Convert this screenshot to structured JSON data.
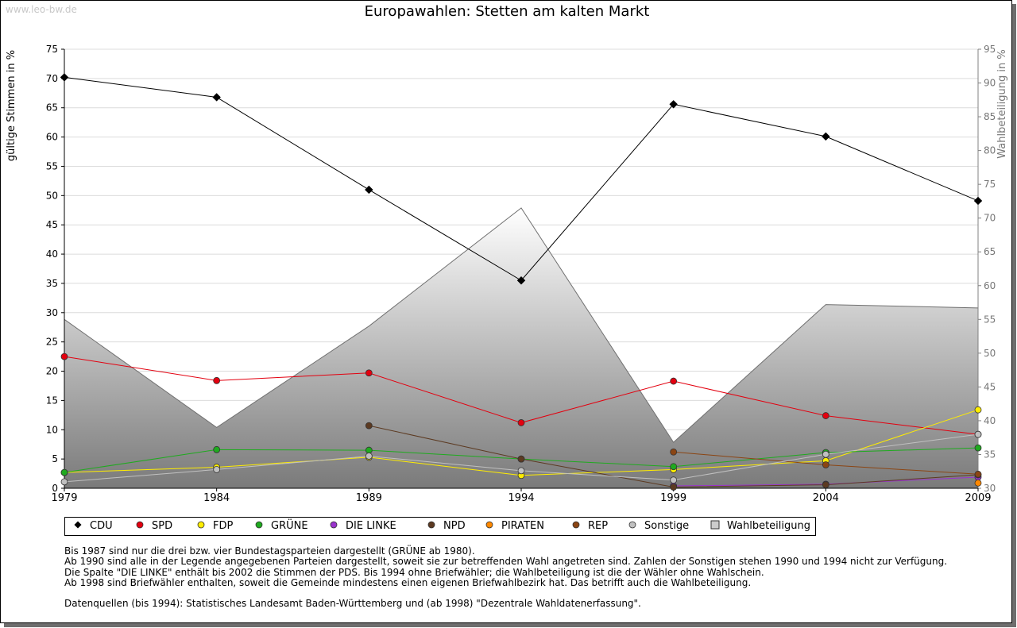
{
  "watermark": "www.leo-bw.de",
  "chart_data": {
    "type": "line",
    "title": "Europawahlen: Stetten am kalten Markt",
    "ylabel": "gültige Stimmen in %",
    "y2label": "Wahlbeteiligung in %",
    "x": [
      1979,
      1984,
      1989,
      1994,
      1999,
      2004,
      2009
    ],
    "ylim": [
      0,
      75
    ],
    "yticks": [
      0,
      5,
      10,
      15,
      20,
      25,
      30,
      35,
      40,
      45,
      50,
      55,
      60,
      65,
      70,
      75
    ],
    "y2lim": [
      30,
      95
    ],
    "y2ticks": [
      30,
      35,
      40,
      45,
      50,
      55,
      60,
      65,
      70,
      75,
      80,
      85,
      90,
      95
    ],
    "grid": true,
    "legend_position": "bottom",
    "series": [
      {
        "name": "CDU",
        "color": "#000000",
        "values": [
          70.2,
          66.8,
          51.0,
          35.5,
          65.6,
          60.1,
          49.1
        ]
      },
      {
        "name": "SPD",
        "color": "#e3000f",
        "values": [
          22.5,
          18.4,
          19.7,
          11.2,
          18.3,
          12.4,
          9.2
        ]
      },
      {
        "name": "FDP",
        "color": "#ffed00",
        "values": [
          2.7,
          3.6,
          5.3,
          2.2,
          3.2,
          4.7,
          13.4
        ]
      },
      {
        "name": "GRÜNE",
        "color": "#1faa1f",
        "values": [
          2.7,
          6.6,
          6.5,
          5.0,
          3.7,
          6.1,
          6.9
        ]
      },
      {
        "name": "DIE LINKE",
        "color": "#9933cc",
        "values": [
          null,
          null,
          null,
          null,
          0.4,
          0.7,
          1.9
        ]
      },
      {
        "name": "NPD",
        "color": "#5c3a21",
        "values": [
          null,
          null,
          10.7,
          5.0,
          0.2,
          0.6,
          2.3
        ]
      },
      {
        "name": "PIRATEN",
        "color": "#ff8800",
        "values": [
          null,
          null,
          null,
          null,
          null,
          null,
          0.9
        ]
      },
      {
        "name": "REP",
        "color": "#8b4513",
        "values": [
          null,
          null,
          null,
          null,
          6.2,
          4.0,
          2.4
        ]
      },
      {
        "name": "Sonstige",
        "color": "#c0c0c0",
        "values": [
          1.1,
          3.2,
          5.5,
          3.0,
          1.4,
          5.8,
          9.2
        ]
      }
    ],
    "turnout": {
      "name": "Wahlbeteiligung",
      "values": [
        55.0,
        39.0,
        54.0,
        71.5,
        36.8,
        57.2,
        56.7
      ]
    }
  },
  "notes": [
    "Bis 1987 sind nur die drei bzw. vier Bundestagsparteien dargestellt (GRÜNE ab 1980).",
    "Ab 1990 sind alle in der Legende angegebenen Parteien dargestellt, soweit sie zur betreffenden Wahl angetreten sind. Zahlen der Sonstigen stehen 1990 und 1994 nicht zur Verfügung.",
    "Die Spalte \"DIE LINKE\" enthält bis 2002 die Stimmen der PDS. Bis 1994 ohne Briefwähler; die Wahlbeteiligung ist die der Wähler ohne Wahlschein.",
    "Ab 1998 sind Briefwähler enthalten, soweit die Gemeinde mindestens einen eigenen Briefwahlbezirk hat. Das betrifft auch die Wahlbeteiligung.",
    "",
    "Datenquellen (bis 1994): Statistisches Landesamt Baden-Württemberg und (ab 1998) \"Dezentrale Wahldatenerfassung\"."
  ]
}
